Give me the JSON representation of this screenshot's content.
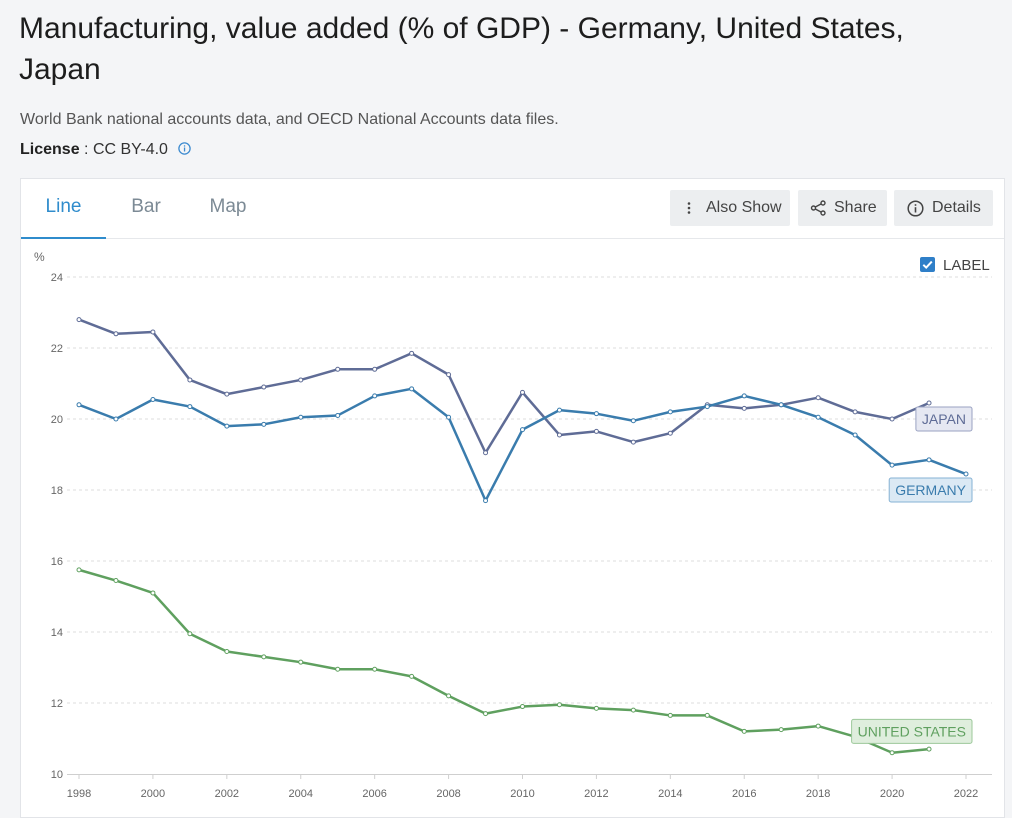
{
  "page": {
    "title": "Manufacturing, value added (% of GDP) - Germany, United States, Japan",
    "source": "World Bank national accounts data, and OECD National Accounts data files.",
    "license_label": "License",
    "license_sep": " : ",
    "license_value": "CC BY-4.0"
  },
  "tabs": [
    {
      "label": "Line",
      "active": true
    },
    {
      "label": "Bar",
      "active": false
    },
    {
      "label": "Map",
      "active": false
    }
  ],
  "toolbar": {
    "also_show": "Also Show",
    "share": "Share",
    "details": "Details"
  },
  "legend_toggle": {
    "label": "LABEL",
    "checked": true
  },
  "colors": {
    "japan": "#5f6c96",
    "germany": "#3a7cad",
    "united_states": "#5fa05f",
    "accent": "#2f8ccc"
  },
  "chart_data": {
    "type": "line",
    "ylabel": "%",
    "ylim": [
      10,
      24
    ],
    "yticks": [
      10,
      12,
      14,
      16,
      18,
      20,
      22,
      24
    ],
    "xlim": [
      1998,
      2022
    ],
    "xticks": [
      1998,
      2000,
      2002,
      2004,
      2006,
      2008,
      2010,
      2012,
      2014,
      2016,
      2018,
      2020,
      2022
    ],
    "grid": true,
    "x": [
      1998,
      1999,
      2000,
      2001,
      2002,
      2003,
      2004,
      2005,
      2006,
      2007,
      2008,
      2009,
      2010,
      2011,
      2012,
      2013,
      2014,
      2015,
      2016,
      2017,
      2018,
      2019,
      2020,
      2021,
      2022
    ],
    "series": [
      {
        "name": "JAPAN",
        "color": "#5f6c96",
        "values": [
          22.8,
          22.4,
          22.45,
          21.1,
          20.7,
          20.9,
          21.1,
          21.4,
          21.4,
          21.85,
          21.25,
          19.05,
          20.75,
          19.55,
          19.65,
          19.35,
          19.6,
          20.4,
          20.3,
          20.4,
          20.6,
          20.2,
          20.0,
          20.45,
          null
        ]
      },
      {
        "name": "GERMANY",
        "color": "#3a7cad",
        "values": [
          20.4,
          20.0,
          20.55,
          20.35,
          19.8,
          19.85,
          20.05,
          20.1,
          20.65,
          20.85,
          20.05,
          17.7,
          19.7,
          20.25,
          20.15,
          19.95,
          20.2,
          20.35,
          20.65,
          20.4,
          20.05,
          19.55,
          18.7,
          18.85,
          18.45
        ]
      },
      {
        "name": "UNITED STATES",
        "color": "#5fa05f",
        "values": [
          15.75,
          15.45,
          15.1,
          13.95,
          13.45,
          13.3,
          13.15,
          12.95,
          12.95,
          12.75,
          12.2,
          11.7,
          11.9,
          11.95,
          11.85,
          11.8,
          11.65,
          11.65,
          11.2,
          11.25,
          11.35,
          11.05,
          10.6,
          10.7,
          null
        ]
      }
    ]
  }
}
